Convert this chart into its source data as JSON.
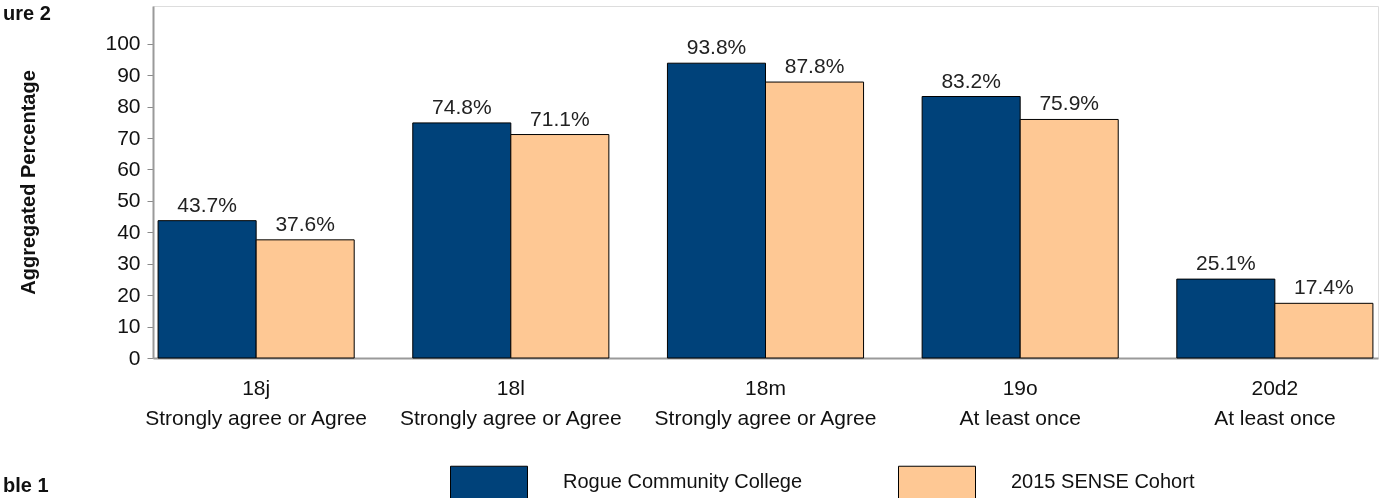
{
  "chart_data": {
    "type": "bar",
    "ylabel": "Aggregated Percentage",
    "categories": [
      "18j\nStrongly agree or Agree",
      "18l\nStrongly agree or Agree",
      "18m\nStrongly agree or Agree",
      "19o\nAt least once",
      "20d2\nAt least once"
    ],
    "series": [
      {
        "name": "Rogue Community College",
        "color": "#00427a",
        "values": [
          43.7,
          74.8,
          93.8,
          83.2,
          25.1
        ],
        "value_labels": [
          "43.7%",
          "74.8%",
          "93.8%",
          "83.2%",
          "25.1%"
        ]
      },
      {
        "name": "2015 SENSE Cohort",
        "color": "#fec894",
        "values": [
          37.6,
          71.1,
          87.8,
          75.9,
          17.4
        ],
        "value_labels": [
          "37.6%",
          "71.1%",
          "87.8%",
          "75.9%",
          "17.4%"
        ]
      }
    ],
    "ylim": [
      0,
      112
    ],
    "yticks": [
      0,
      10,
      20,
      30,
      40,
      50,
      60,
      70,
      80,
      90,
      100
    ],
    "legend": "bottom",
    "annotations": [
      "ure 2",
      "ble 1"
    ]
  }
}
